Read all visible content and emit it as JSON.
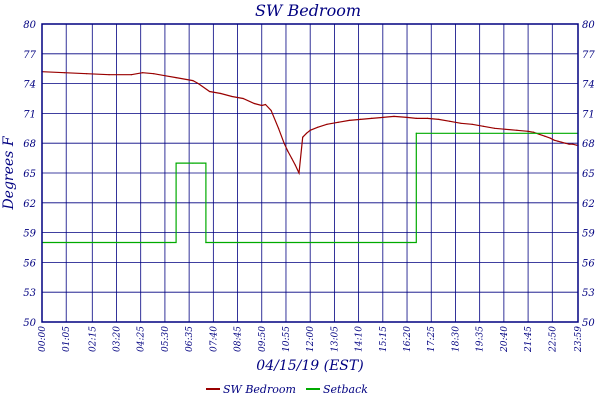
{
  "chart_data": {
    "type": "line",
    "title": "SW Bedroom",
    "xlabel": "04/15/19 (EST)",
    "ylabel": "Degrees F",
    "y_ticks": [
      "50",
      "53",
      "56",
      "59",
      "62",
      "65",
      "68",
      "71",
      "74",
      "77",
      "80"
    ],
    "ylim": [
      50,
      80
    ],
    "x_ticks": [
      "00:00",
      "01:05",
      "02:15",
      "03:20",
      "04:25",
      "05:30",
      "06:35",
      "07:40",
      "08:45",
      "09:50",
      "10:55",
      "12:00",
      "13:05",
      "14:10",
      "15:15",
      "16:20",
      "17:25",
      "18:30",
      "19:35",
      "20:40",
      "21:45",
      "22:50",
      "23:59"
    ],
    "grid": true,
    "legend_position": "bottom",
    "colors": {
      "frame": "#000080",
      "grid": "#000080",
      "text": "#000080",
      "sw_bedroom": "#990000",
      "setback": "#00aa00"
    },
    "series": [
      {
        "name": "SW Bedroom",
        "color": "#990000",
        "x": [
          "00:00",
          "01:00",
          "02:00",
          "03:00",
          "04:00",
          "04:30",
          "05:00",
          "05:30",
          "06:00",
          "06:45",
          "07:00",
          "07:30",
          "08:00",
          "08:30",
          "09:00",
          "09:30",
          "09:50",
          "10:00",
          "10:15",
          "10:35",
          "10:50",
          "11:00",
          "11:10",
          "11:20",
          "11:30",
          "11:40",
          "11:50",
          "12:00",
          "12:20",
          "12:45",
          "13:15",
          "13:45",
          "14:15",
          "14:45",
          "15:15",
          "15:45",
          "16:20",
          "16:45",
          "17:15",
          "17:45",
          "18:15",
          "18:45",
          "19:15",
          "19:45",
          "20:15",
          "20:45",
          "21:15",
          "21:45",
          "22:00",
          "22:15",
          "22:30",
          "22:45",
          "22:55",
          "23:05",
          "23:15",
          "23:25",
          "23:35",
          "23:45",
          "23:55",
          "23:59"
        ],
        "values": [
          75.2,
          75.1,
          75.0,
          74.9,
          74.9,
          75.1,
          75.0,
          74.8,
          74.6,
          74.3,
          74.0,
          73.2,
          73.0,
          72.7,
          72.5,
          72.0,
          71.8,
          71.9,
          71.3,
          69.5,
          68.0,
          67.2,
          66.5,
          65.8,
          65.0,
          68.6,
          69.0,
          69.3,
          69.6,
          69.9,
          70.1,
          70.3,
          70.4,
          70.5,
          70.6,
          70.7,
          70.6,
          70.5,
          70.5,
          70.4,
          70.2,
          70.0,
          69.9,
          69.7,
          69.5,
          69.4,
          69.3,
          69.2,
          69.1,
          68.9,
          68.7,
          68.5,
          68.3,
          68.2,
          68.1,
          68.0,
          67.9,
          67.9,
          67.8,
          67.8
        ]
      },
      {
        "name": "Setback",
        "color": "#00aa00",
        "step": true,
        "x": [
          "00:00",
          "05:45",
          "06:00",
          "06:45",
          "07:10",
          "07:20",
          "16:30",
          "16:45",
          "23:59"
        ],
        "values": [
          58,
          58,
          66,
          66,
          66,
          58,
          58,
          69,
          69
        ]
      }
    ]
  }
}
